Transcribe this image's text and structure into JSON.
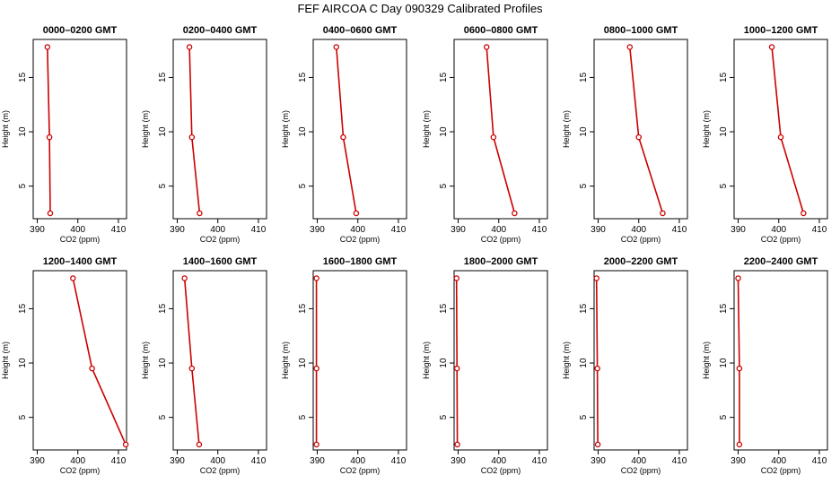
{
  "figure_title": "FEF AIRCOA C  Day 090329  Calibrated Profiles",
  "colors": {
    "series": "#cc0000",
    "axes": "#000000",
    "background": "#ffffff"
  },
  "chart_data": [
    {
      "type": "line",
      "title": "0000–0200 GMT",
      "xlabel": "CO2 (ppm)",
      "ylabel": "Height (m)",
      "xlim": [
        389,
        412
      ],
      "ylim": [
        2,
        18.5
      ],
      "xticks": [
        390,
        400,
        410
      ],
      "yticks": [
        5,
        10,
        15
      ],
      "grid": false,
      "series": [
        {
          "x": [
            392.5,
            393.0,
            393.2
          ],
          "y": [
            17.8,
            9.5,
            2.5
          ]
        }
      ]
    },
    {
      "type": "line",
      "title": "0200–0400 GMT",
      "xlabel": "CO2 (ppm)",
      "ylabel": "Height (m)",
      "xlim": [
        389,
        412
      ],
      "ylim": [
        2,
        18.5
      ],
      "xticks": [
        390,
        400,
        410
      ],
      "yticks": [
        5,
        10,
        15
      ],
      "grid": false,
      "series": [
        {
          "x": [
            393.0,
            393.6,
            395.5
          ],
          "y": [
            17.8,
            9.5,
            2.5
          ]
        }
      ]
    },
    {
      "type": "line",
      "title": "0400–0600 GMT",
      "xlabel": "CO2 (ppm)",
      "ylabel": "Height (m)",
      "xlim": [
        389,
        412
      ],
      "ylim": [
        2,
        18.5
      ],
      "xticks": [
        390,
        400,
        410
      ],
      "yticks": [
        5,
        10,
        15
      ],
      "grid": false,
      "series": [
        {
          "x": [
            394.7,
            396.4,
            399.6
          ],
          "y": [
            17.8,
            9.5,
            2.5
          ]
        }
      ]
    },
    {
      "type": "line",
      "title": "0600–0800 GMT",
      "xlabel": "CO2 (ppm)",
      "ylabel": "Height (m)",
      "xlim": [
        389,
        412
      ],
      "ylim": [
        2,
        18.5
      ],
      "xticks": [
        390,
        400,
        410
      ],
      "yticks": [
        5,
        10,
        15
      ],
      "grid": false,
      "series": [
        {
          "x": [
            397.0,
            398.7,
            403.9
          ],
          "y": [
            17.8,
            9.5,
            2.5
          ]
        }
      ]
    },
    {
      "type": "line",
      "title": "0800–1000 GMT",
      "xlabel": "CO2 (ppm)",
      "ylabel": "Height (m)",
      "xlim": [
        389,
        412
      ],
      "ylim": [
        2,
        18.5
      ],
      "xticks": [
        390,
        400,
        410
      ],
      "yticks": [
        5,
        10,
        15
      ],
      "grid": false,
      "series": [
        {
          "x": [
            397.8,
            400.0,
            405.9
          ],
          "y": [
            17.8,
            9.5,
            2.5
          ]
        }
      ]
    },
    {
      "type": "line",
      "title": "1000–1200 GMT",
      "xlabel": "CO2 (ppm)",
      "ylabel": "Height (m)",
      "xlim": [
        389,
        412
      ],
      "ylim": [
        2,
        18.5
      ],
      "xticks": [
        390,
        400,
        410
      ],
      "yticks": [
        5,
        10,
        15
      ],
      "grid": false,
      "series": [
        {
          "x": [
            398.3,
            400.5,
            406.1
          ],
          "y": [
            17.8,
            9.5,
            2.5
          ]
        }
      ]
    },
    {
      "type": "line",
      "title": "1200–1400 GMT",
      "xlabel": "CO2 (ppm)",
      "ylabel": "Height (m)",
      "xlim": [
        389,
        412
      ],
      "ylim": [
        2,
        18.5
      ],
      "xticks": [
        390,
        400,
        410
      ],
      "yticks": [
        5,
        10,
        15
      ],
      "grid": false,
      "series": [
        {
          "x": [
            398.8,
            403.5,
            411.8
          ],
          "y": [
            17.8,
            9.5,
            2.5
          ]
        }
      ]
    },
    {
      "type": "line",
      "title": "1400–1600 GMT",
      "xlabel": "CO2 (ppm)",
      "ylabel": "Height (m)",
      "xlim": [
        389,
        412
      ],
      "ylim": [
        2,
        18.5
      ],
      "xticks": [
        390,
        400,
        410
      ],
      "yticks": [
        5,
        10,
        15
      ],
      "grid": false,
      "series": [
        {
          "x": [
            391.8,
            393.6,
            395.4
          ],
          "y": [
            17.8,
            9.5,
            2.5
          ]
        }
      ]
    },
    {
      "type": "line",
      "title": "1600–1800 GMT",
      "xlabel": "CO2 (ppm)",
      "ylabel": "Height (m)",
      "xlim": [
        389,
        412
      ],
      "ylim": [
        2,
        18.5
      ],
      "xticks": [
        390,
        400,
        410
      ],
      "yticks": [
        5,
        10,
        15
      ],
      "grid": false,
      "series": [
        {
          "x": [
            389.8,
            389.8,
            389.8
          ],
          "y": [
            17.8,
            9.5,
            2.5
          ]
        }
      ]
    },
    {
      "type": "line",
      "title": "1800–2000 GMT",
      "xlabel": "CO2 (ppm)",
      "ylabel": "Height (m)",
      "xlim": [
        389,
        412
      ],
      "ylim": [
        2,
        18.5
      ],
      "xticks": [
        390,
        400,
        410
      ],
      "yticks": [
        5,
        10,
        15
      ],
      "grid": false,
      "series": [
        {
          "x": [
            389.6,
            389.7,
            389.8
          ],
          "y": [
            17.8,
            9.5,
            2.5
          ]
        }
      ]
    },
    {
      "type": "line",
      "title": "2000–2200 GMT",
      "xlabel": "CO2 (ppm)",
      "ylabel": "Height (m)",
      "xlim": [
        389,
        412
      ],
      "ylim": [
        2,
        18.5
      ],
      "xticks": [
        390,
        400,
        410
      ],
      "yticks": [
        5,
        10,
        15
      ],
      "grid": false,
      "series": [
        {
          "x": [
            389.6,
            389.8,
            389.9
          ],
          "y": [
            17.8,
            9.5,
            2.5
          ]
        }
      ]
    },
    {
      "type": "line",
      "title": "2200–2400 GMT",
      "xlabel": "CO2 (ppm)",
      "ylabel": "Height (m)",
      "xlim": [
        389,
        412
      ],
      "ylim": [
        2,
        18.5
      ],
      "xticks": [
        390,
        400,
        410
      ],
      "yticks": [
        5,
        10,
        15
      ],
      "grid": false,
      "series": [
        {
          "x": [
            390.0,
            390.3,
            390.3
          ],
          "y": [
            17.8,
            9.5,
            2.5
          ]
        }
      ]
    }
  ]
}
